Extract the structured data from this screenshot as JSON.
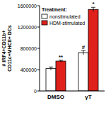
{
  "chart_data": {
    "type": "bar",
    "y_label": [
      "# IRF4+CD11b+",
      "CD11c+MHCII+ DCs"
    ],
    "categories": [
      "DMSO",
      "γT"
    ],
    "legend_title": "Treatment:",
    "legend": "upper left",
    "series": [
      {
        "name": "nonstimulated",
        "color": "#ffffff",
        "values": [
          420000,
          720000
        ],
        "errors": [
          30000,
          40000
        ],
        "annotations": [
          null,
          "#"
        ]
      },
      {
        "name": "HDM-stimulated",
        "color": "#e0201b",
        "values": [
          560000,
          1530000
        ],
        "errors": [
          20000,
          40000
        ],
        "annotations": [
          "**",
          "*"
        ]
      }
    ],
    "ylim": [
      0,
      1600000
    ],
    "yticks": [
      0,
      400000,
      800000,
      1200000,
      1600000
    ]
  }
}
